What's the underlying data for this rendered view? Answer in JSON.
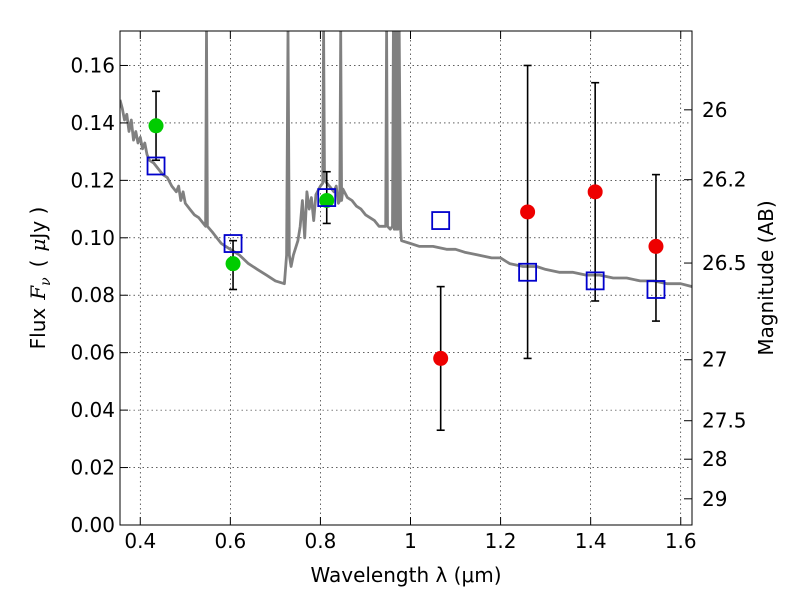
{
  "chart_data": {
    "type": "scatter",
    "xlabel": "Wavelength  λ (μm)",
    "ylabel_parts": [
      "Flux",
      "F",
      "ν",
      "(",
      "μ",
      "Jy )"
    ],
    "ylabel_right": "Magnitude (AB)",
    "xlim": [
      0.355,
      1.625
    ],
    "ylim": [
      0.0,
      0.172
    ],
    "grid": true,
    "x_ticks": [
      0.4,
      0.6,
      0.8,
      1.0,
      1.2,
      1.4,
      1.6
    ],
    "x_tick_labels": [
      "0.4",
      "0.6",
      "0.8",
      "1",
      "1.2",
      "1.4",
      "1.6"
    ],
    "y_ticks": [
      0.0,
      0.02,
      0.04,
      0.06,
      0.08,
      0.1,
      0.12,
      0.14,
      0.16
    ],
    "y_tick_labels": [
      "0.00",
      "0.02",
      "0.04",
      "0.06",
      "0.08",
      "0.10",
      "0.12",
      "0.14",
      "0.16"
    ],
    "right_ticks": [
      {
        "label": "26",
        "mag": 26.0
      },
      {
        "label": "26.2",
        "mag": 26.2
      },
      {
        "label": "26.5",
        "mag": 26.5
      },
      {
        "label": "27",
        "mag": 27.0
      },
      {
        "label": "27.5",
        "mag": 27.5
      },
      {
        "label": "28",
        "mag": 28.0
      },
      {
        "label": "29",
        "mag": 29.0
      }
    ],
    "series": [
      {
        "kind": "model-spectrum",
        "color": "#808080",
        "points": [
          [
            0.355,
            0.148
          ],
          [
            0.36,
            0.145
          ],
          [
            0.365,
            0.141
          ],
          [
            0.37,
            0.143
          ],
          [
            0.375,
            0.137
          ],
          [
            0.38,
            0.141
          ],
          [
            0.385,
            0.134
          ],
          [
            0.39,
            0.137
          ],
          [
            0.395,
            0.133
          ],
          [
            0.4,
            0.135
          ],
          [
            0.405,
            0.131
          ],
          [
            0.41,
            0.133
          ],
          [
            0.415,
            0.129
          ],
          [
            0.42,
            0.127
          ],
          [
            0.43,
            0.126
          ],
          [
            0.44,
            0.124
          ],
          [
            0.45,
            0.122
          ],
          [
            0.46,
            0.121
          ],
          [
            0.47,
            0.118
          ],
          [
            0.48,
            0.116
          ],
          [
            0.485,
            0.118
          ],
          [
            0.49,
            0.113
          ],
          [
            0.495,
            0.116
          ],
          [
            0.5,
            0.112
          ],
          [
            0.51,
            0.11
          ],
          [
            0.52,
            0.108
          ],
          [
            0.53,
            0.107
          ],
          [
            0.54,
            0.105
          ],
          [
            0.545,
            0.104
          ],
          [
            0.547,
            0.172
          ],
          [
            0.549,
            0.104
          ],
          [
            0.56,
            0.102
          ],
          [
            0.57,
            0.1
          ],
          [
            0.58,
            0.098
          ],
          [
            0.59,
            0.097
          ],
          [
            0.6,
            0.096
          ],
          [
            0.62,
            0.094
          ],
          [
            0.64,
            0.091
          ],
          [
            0.66,
            0.089
          ],
          [
            0.68,
            0.087
          ],
          [
            0.7,
            0.085
          ],
          [
            0.72,
            0.084
          ],
          [
            0.725,
            0.094
          ],
          [
            0.728,
            0.172
          ],
          [
            0.731,
            0.094
          ],
          [
            0.735,
            0.09
          ],
          [
            0.74,
            0.094
          ],
          [
            0.75,
            0.099
          ],
          [
            0.755,
            0.104
          ],
          [
            0.76,
            0.113
          ],
          [
            0.765,
            0.1
          ],
          [
            0.77,
            0.116
          ],
          [
            0.775,
            0.11
          ],
          [
            0.78,
            0.114
          ],
          [
            0.785,
            0.106
          ],
          [
            0.79,
            0.115
          ],
          [
            0.8,
            0.118
          ],
          [
            0.805,
            0.119
          ],
          [
            0.807,
            0.172
          ],
          [
            0.809,
            0.12
          ],
          [
            0.82,
            0.118
          ],
          [
            0.83,
            0.116
          ],
          [
            0.835,
            0.118
          ],
          [
            0.84,
            0.112
          ],
          [
            0.843,
            0.113
          ],
          [
            0.845,
            0.172
          ],
          [
            0.847,
            0.113
          ],
          [
            0.85,
            0.117
          ],
          [
            0.86,
            0.114
          ],
          [
            0.87,
            0.113
          ],
          [
            0.88,
            0.111
          ],
          [
            0.89,
            0.11
          ],
          [
            0.9,
            0.108
          ],
          [
            0.91,
            0.107
          ],
          [
            0.92,
            0.106
          ],
          [
            0.93,
            0.104
          ],
          [
            0.94,
            0.104
          ],
          [
            0.945,
            0.104
          ],
          [
            0.947,
            0.172
          ],
          [
            0.949,
            0.104
          ],
          [
            0.955,
            0.103
          ],
          [
            0.96,
            0.104
          ],
          [
            0.962,
            0.172
          ],
          [
            0.964,
            0.103
          ],
          [
            0.966,
            0.172
          ],
          [
            0.968,
            0.103
          ],
          [
            0.97,
            0.172
          ],
          [
            0.972,
            0.103
          ],
          [
            0.975,
            0.172
          ],
          [
            0.978,
            0.103
          ],
          [
            0.98,
            0.099
          ],
          [
            1.0,
            0.098
          ],
          [
            1.02,
            0.097
          ],
          [
            1.05,
            0.097
          ],
          [
            1.08,
            0.096
          ],
          [
            1.1,
            0.096
          ],
          [
            1.12,
            0.095
          ],
          [
            1.15,
            0.094
          ],
          [
            1.18,
            0.093
          ],
          [
            1.2,
            0.093
          ],
          [
            1.22,
            0.091
          ],
          [
            1.25,
            0.09
          ],
          [
            1.28,
            0.09
          ],
          [
            1.3,
            0.089
          ],
          [
            1.33,
            0.088
          ],
          [
            1.36,
            0.088
          ],
          [
            1.39,
            0.087
          ],
          [
            1.42,
            0.087
          ],
          [
            1.45,
            0.086
          ],
          [
            1.48,
            0.086
          ],
          [
            1.51,
            0.085
          ],
          [
            1.54,
            0.085
          ],
          [
            1.57,
            0.084
          ],
          [
            1.6,
            0.084
          ],
          [
            1.625,
            0.083
          ]
        ]
      },
      {
        "kind": "model-photometry",
        "marker": "open-square",
        "color": "#0000cc",
        "points": [
          [
            0.435,
            0.125
          ],
          [
            0.606,
            0.098
          ],
          [
            0.814,
            0.114
          ],
          [
            1.067,
            0.106
          ],
          [
            1.26,
            0.088
          ],
          [
            1.41,
            0.085
          ],
          [
            1.545,
            0.082
          ]
        ]
      },
      {
        "kind": "observed-detections",
        "marker": "filled-circle",
        "color": "#00cc00",
        "points": [
          [
            0.435,
            0.139
          ],
          [
            0.606,
            0.091
          ],
          [
            0.814,
            0.113
          ]
        ]
      },
      {
        "kind": "observed-nir",
        "marker": "filled-circle",
        "color": "#ee0000",
        "points": [
          [
            1.067,
            0.058
          ],
          [
            1.26,
            0.109
          ],
          [
            1.41,
            0.116
          ],
          [
            1.545,
            0.097
          ]
        ]
      }
    ],
    "error_bars": [
      {
        "x": 0.435,
        "low": 0.127,
        "high": 0.151
      },
      {
        "x": 0.606,
        "low": 0.082,
        "high": 0.099
      },
      {
        "x": 0.814,
        "low": 0.105,
        "high": 0.123
      },
      {
        "x": 1.067,
        "low": 0.033,
        "high": 0.083
      },
      {
        "x": 1.26,
        "low": 0.058,
        "high": 0.16
      },
      {
        "x": 1.41,
        "low": 0.078,
        "high": 0.154
      },
      {
        "x": 1.545,
        "low": 0.071,
        "high": 0.122
      }
    ]
  }
}
